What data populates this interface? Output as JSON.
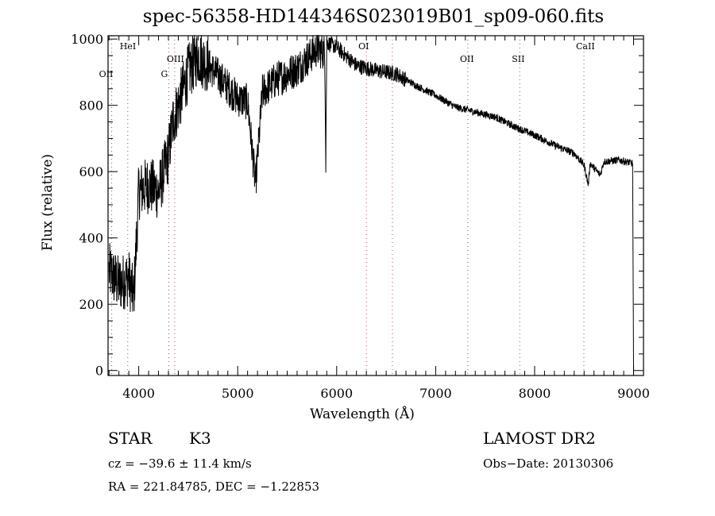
{
  "chart_data": {
    "type": "line",
    "title": "spec-56358-HD144346S023019B01_sp09-060.fits",
    "xlabel": "Wavelength (Å)",
    "ylabel": "Flux (relative)",
    "xlim": [
      3690,
      9100
    ],
    "ylim": [
      -15,
      1010
    ],
    "xticks": [
      "4000",
      "5000",
      "6000",
      "7000",
      "8000",
      "9000"
    ],
    "xtick_values": [
      4000,
      5000,
      6000,
      7000,
      8000,
      9000
    ],
    "yticks": [
      "0",
      "200",
      "400",
      "600",
      "800",
      "1000"
    ],
    "ytick_values": [
      0,
      200,
      400,
      600,
      800,
      1000
    ],
    "grid": false,
    "line_color": "#000000",
    "marker_color": "#a05050",
    "series": [
      {
        "name": "spectrum",
        "continuum_anchors": [
          [
            3700,
            300
          ],
          [
            3800,
            260
          ],
          [
            3900,
            280
          ],
          [
            3950,
            220
          ],
          [
            4000,
            540
          ],
          [
            4100,
            560
          ],
          [
            4200,
            540
          ],
          [
            4300,
            650
          ],
          [
            4350,
            760
          ],
          [
            4400,
            800
          ],
          [
            4500,
            900
          ],
          [
            4600,
            950
          ],
          [
            4800,
            890
          ],
          [
            5000,
            820
          ],
          [
            5100,
            810
          ],
          [
            5180,
            560
          ],
          [
            5250,
            840
          ],
          [
            5400,
            880
          ],
          [
            5600,
            910
          ],
          [
            5800,
            970
          ],
          [
            5880,
            960
          ],
          [
            5890,
            640
          ],
          [
            5900,
            990
          ],
          [
            6000,
            975
          ],
          [
            6200,
            920
          ],
          [
            6400,
            905
          ],
          [
            6600,
            895
          ],
          [
            6800,
            860
          ],
          [
            7000,
            830
          ],
          [
            7200,
            795
          ],
          [
            7400,
            780
          ],
          [
            7600,
            765
          ],
          [
            7800,
            735
          ],
          [
            8000,
            710
          ],
          [
            8200,
            680
          ],
          [
            8400,
            655
          ],
          [
            8500,
            620
          ],
          [
            8542,
            560
          ],
          [
            8560,
            625
          ],
          [
            8662,
            590
          ],
          [
            8700,
            630
          ],
          [
            8850,
            635
          ],
          [
            8990,
            625
          ],
          [
            9000,
            0
          ]
        ]
      }
    ],
    "line_markers": [
      {
        "label": "OII",
        "wavelength": 3727
      },
      {
        "label": "HeI",
        "wavelength": 3889
      },
      {
        "label": "G",
        "wavelength": 4304
      },
      {
        "label": "OIII",
        "wavelength": 4363
      },
      {
        "label": "OI",
        "wavelength": 6300
      },
      {
        "label": "",
        "wavelength": 6563
      },
      {
        "label": "OII",
        "wavelength": 7325
      },
      {
        "label": "SII",
        "wavelength": 7850
      },
      {
        "label": "CaII",
        "wavelength": 8498
      }
    ]
  },
  "info": {
    "object_class": "STAR",
    "subclass": "K3",
    "survey": "LAMOST DR2",
    "cz": "cz = −39.6 ± 11.4 km/s",
    "obs_date": "Obs−Date: 20130306",
    "coords": "RA = 221.84785, DEC =  −1.22853"
  }
}
